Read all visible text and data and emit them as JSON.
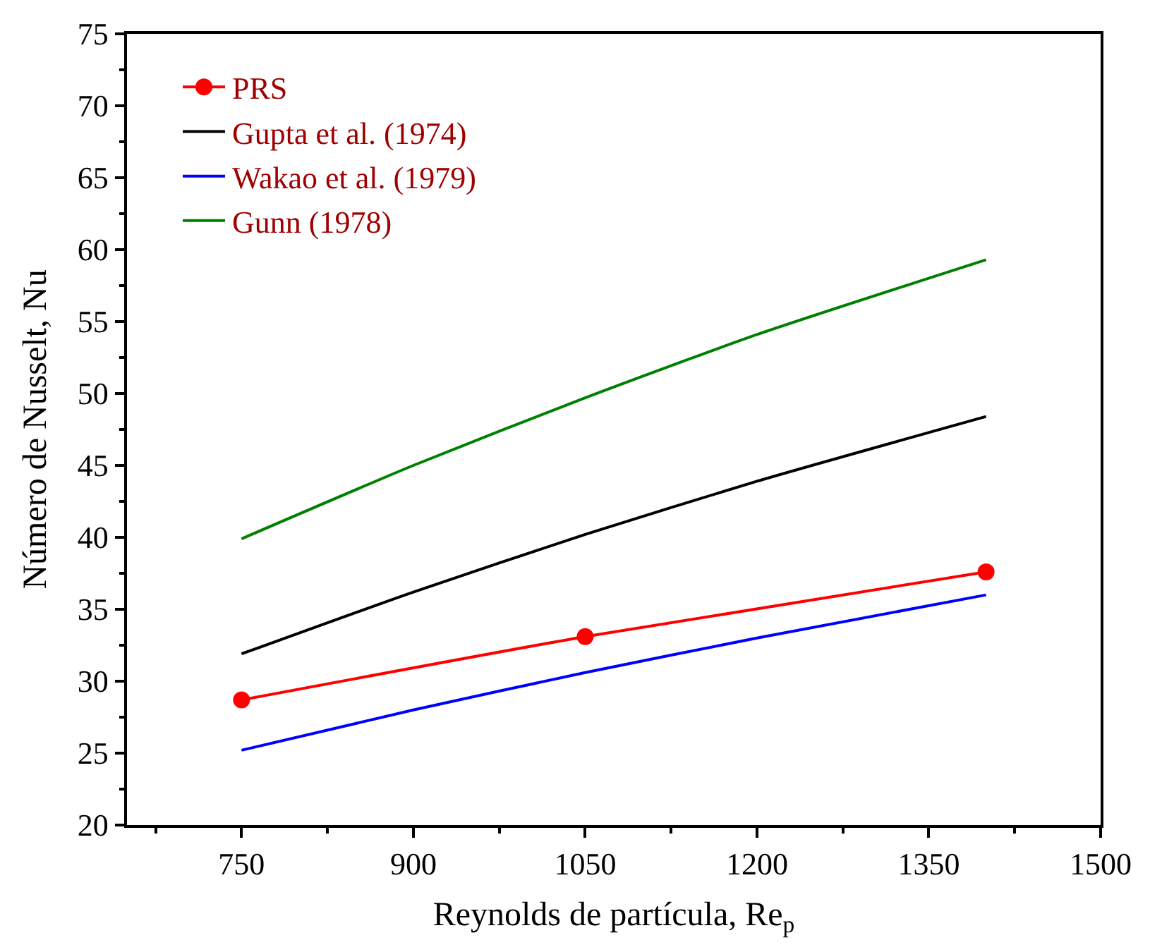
{
  "chart_data": {
    "type": "line",
    "xlabel": "Reynolds de partícula, Re$_{p}$",
    "ylabel": "Número de Nusselt, Nu",
    "xlim": [
      650,
      1500
    ],
    "xticks": [
      750,
      900,
      1050,
      1200,
      1350,
      1500
    ],
    "ylim": [
      20,
      75
    ],
    "yticks": [
      20,
      25,
      30,
      35,
      40,
      45,
      50,
      55,
      60,
      65,
      70,
      75
    ],
    "legend": "top left",
    "series": [
      {
        "name": "PRS",
        "color": "#ff0000",
        "marker": "circle",
        "x": [
          750,
          1050,
          1400
        ],
        "values": [
          28.7,
          33.1,
          37.6
        ]
      },
      {
        "name": "Gupta et al. (1974)",
        "color": "#000000",
        "marker": "none",
        "x": [
          750,
          900,
          1050,
          1200,
          1400
        ],
        "values": [
          31.9,
          36.2,
          40.2,
          43.9,
          48.4
        ]
      },
      {
        "name": "Wakao et al. (1979)",
        "color": "#0000ff",
        "marker": "none",
        "x": [
          750,
          900,
          1050,
          1200,
          1400
        ],
        "values": [
          25.2,
          28.0,
          30.6,
          33.0,
          36.0
        ]
      },
      {
        "name": "Gunn (1978)",
        "color": "#008000",
        "marker": "none",
        "x": [
          750,
          900,
          1050,
          1200,
          1400
        ],
        "values": [
          39.9,
          45.0,
          49.7,
          54.1,
          59.3
        ]
      }
    ]
  }
}
